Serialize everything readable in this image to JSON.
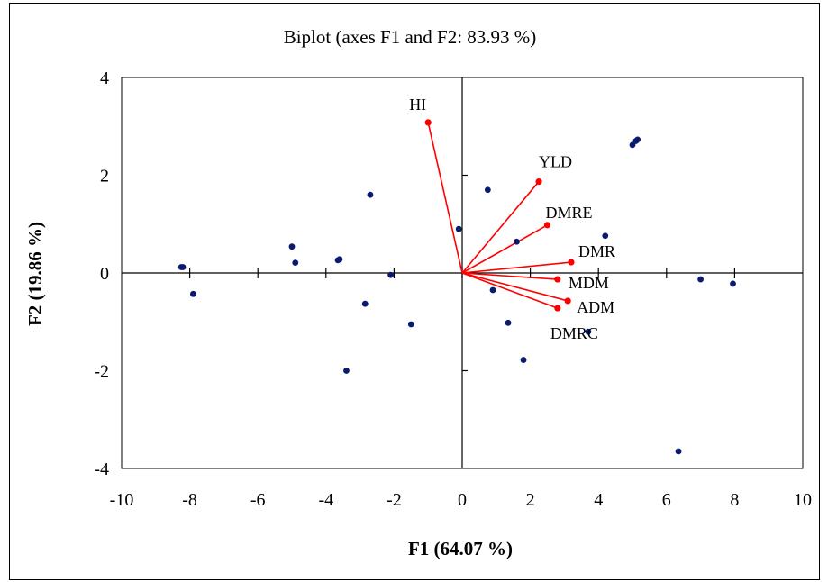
{
  "chart_data": {
    "type": "scatter",
    "title": "Biplot (axes F1 and F2: 83.93 %)",
    "xlabel": "F1 (64.07 %)",
    "ylabel": "F2 (19.86 %)",
    "xlim": [
      -10,
      10
    ],
    "ylim": [
      -4,
      4
    ],
    "x_ticks": [
      -10,
      -8,
      -6,
      -4,
      -2,
      0,
      2,
      4,
      6,
      8,
      10
    ],
    "y_ticks": [
      -4,
      -2,
      0,
      2,
      4
    ],
    "x_tick_labels": [
      "-10",
      "-8",
      "-6",
      "-4",
      "-2",
      "0",
      "2",
      "4",
      "6",
      "8",
      "10"
    ],
    "y_tick_labels": [
      "-4",
      "-2",
      "0",
      "2",
      "4"
    ],
    "grid": false,
    "legend": "none",
    "colors": {
      "observations": "#0a1a6e",
      "variables": "#ff0000",
      "axes": "#000000"
    },
    "observations": [
      {
        "x": -8.2,
        "y": 0.12
      },
      {
        "x": -8.25,
        "y": 0.12
      },
      {
        "x": -7.9,
        "y": -0.43
      },
      {
        "x": -5.0,
        "y": 0.54
      },
      {
        "x": -4.9,
        "y": 0.21
      },
      {
        "x": -3.6,
        "y": 0.28
      },
      {
        "x": -3.65,
        "y": 0.26
      },
      {
        "x": -2.7,
        "y": 1.6
      },
      {
        "x": -2.85,
        "y": -0.63
      },
      {
        "x": -2.1,
        "y": -0.04
      },
      {
        "x": -1.5,
        "y": -1.05
      },
      {
        "x": -3.4,
        "y": -2.0
      },
      {
        "x": -0.1,
        "y": 0.9
      },
      {
        "x": 0.75,
        "y": 1.7
      },
      {
        "x": 0.9,
        "y": -0.35
      },
      {
        "x": 1.35,
        "y": -1.02
      },
      {
        "x": 1.6,
        "y": 0.64
      },
      {
        "x": 1.8,
        "y": -1.78
      },
      {
        "x": 4.2,
        "y": 0.76
      },
      {
        "x": 3.7,
        "y": -1.2
      },
      {
        "x": 5.0,
        "y": 2.62
      },
      {
        "x": 5.15,
        "y": 2.73
      },
      {
        "x": 5.1,
        "y": 2.7
      },
      {
        "x": 7.0,
        "y": -0.13
      },
      {
        "x": 7.95,
        "y": -0.22
      },
      {
        "x": 6.35,
        "y": -3.65
      }
    ],
    "variables": [
      {
        "name": "HI",
        "x": -1.0,
        "y": 3.08
      },
      {
        "name": "YLD",
        "x": 2.25,
        "y": 1.87
      },
      {
        "name": "DMRE",
        "x": 2.5,
        "y": 0.98
      },
      {
        "name": "DMR",
        "x": 3.2,
        "y": 0.22
      },
      {
        "name": "MDM",
        "x": 2.8,
        "y": -0.13
      },
      {
        "name": "ADM",
        "x": 3.1,
        "y": -0.57
      },
      {
        "name": "DMRC",
        "x": 2.8,
        "y": -0.72
      }
    ]
  }
}
